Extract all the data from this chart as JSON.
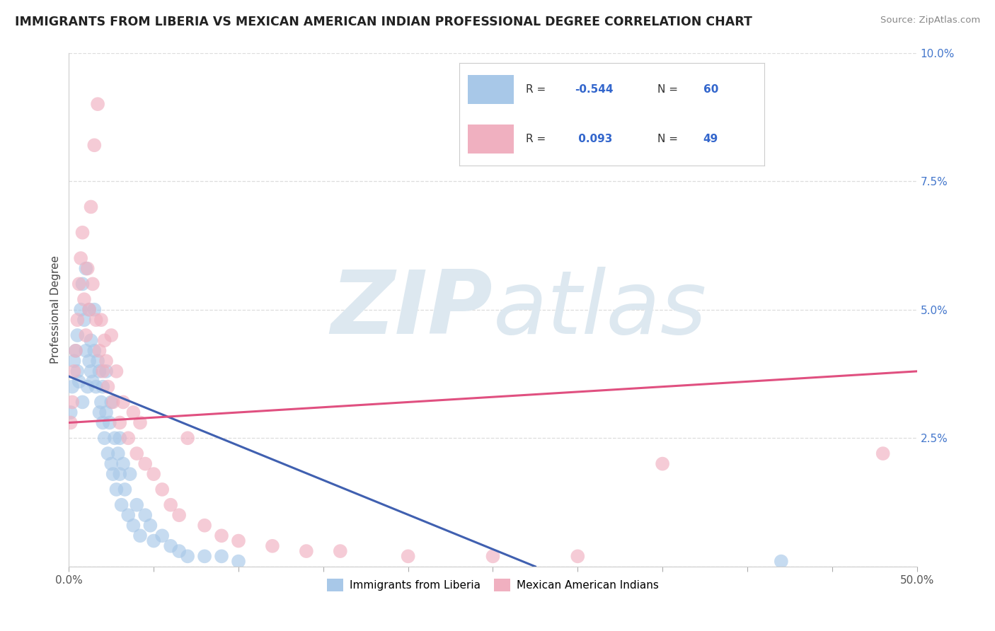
{
  "title": "IMMIGRANTS FROM LIBERIA VS MEXICAN AMERICAN INDIAN PROFESSIONAL DEGREE CORRELATION CHART",
  "source": "Source: ZipAtlas.com",
  "ylabel": "Professional Degree",
  "xlim": [
    0.0,
    0.5
  ],
  "ylim": [
    0.0,
    0.1
  ],
  "xticks": [
    0.0,
    0.05,
    0.1,
    0.15,
    0.2,
    0.25,
    0.3,
    0.35,
    0.4,
    0.45,
    0.5
  ],
  "xticklabels_show": [
    "0.0%",
    "",
    "",
    "",
    "",
    "",
    "",
    "",
    "",
    "",
    "50.0%"
  ],
  "yticks": [
    0.0,
    0.025,
    0.05,
    0.075,
    0.1
  ],
  "yticklabels": [
    "",
    "2.5%",
    "5.0%",
    "7.5%",
    "10.0%"
  ],
  "color_blue": "#a8c8e8",
  "color_pink": "#f0b0c0",
  "line_blue": "#4060b0",
  "line_pink": "#e05080",
  "watermark_color": "#dde8f0",
  "background_color": "#ffffff",
  "grid_color": "#dddddd",
  "blue_scatter_x": [
    0.001,
    0.002,
    0.003,
    0.004,
    0.005,
    0.005,
    0.006,
    0.007,
    0.008,
    0.008,
    0.009,
    0.01,
    0.01,
    0.011,
    0.012,
    0.012,
    0.013,
    0.013,
    0.014,
    0.015,
    0.015,
    0.016,
    0.017,
    0.018,
    0.018,
    0.019,
    0.02,
    0.02,
    0.021,
    0.022,
    0.022,
    0.023,
    0.024,
    0.025,
    0.025,
    0.026,
    0.027,
    0.028,
    0.029,
    0.03,
    0.03,
    0.031,
    0.032,
    0.033,
    0.035,
    0.036,
    0.038,
    0.04,
    0.042,
    0.045,
    0.048,
    0.05,
    0.055,
    0.06,
    0.065,
    0.07,
    0.08,
    0.09,
    0.1,
    0.42
  ],
  "blue_scatter_y": [
    0.03,
    0.035,
    0.04,
    0.042,
    0.038,
    0.045,
    0.036,
    0.05,
    0.055,
    0.032,
    0.048,
    0.042,
    0.058,
    0.035,
    0.04,
    0.05,
    0.038,
    0.044,
    0.036,
    0.042,
    0.05,
    0.035,
    0.04,
    0.03,
    0.038,
    0.032,
    0.028,
    0.035,
    0.025,
    0.03,
    0.038,
    0.022,
    0.028,
    0.02,
    0.032,
    0.018,
    0.025,
    0.015,
    0.022,
    0.018,
    0.025,
    0.012,
    0.02,
    0.015,
    0.01,
    0.018,
    0.008,
    0.012,
    0.006,
    0.01,
    0.008,
    0.005,
    0.006,
    0.004,
    0.003,
    0.002,
    0.002,
    0.002,
    0.001,
    0.001
  ],
  "pink_scatter_x": [
    0.001,
    0.002,
    0.003,
    0.004,
    0.005,
    0.006,
    0.007,
    0.008,
    0.009,
    0.01,
    0.011,
    0.012,
    0.013,
    0.014,
    0.015,
    0.016,
    0.017,
    0.018,
    0.019,
    0.02,
    0.021,
    0.022,
    0.023,
    0.025,
    0.026,
    0.028,
    0.03,
    0.032,
    0.035,
    0.038,
    0.04,
    0.042,
    0.045,
    0.05,
    0.055,
    0.06,
    0.065,
    0.07,
    0.08,
    0.09,
    0.1,
    0.12,
    0.14,
    0.16,
    0.2,
    0.25,
    0.3,
    0.35,
    0.48
  ],
  "pink_scatter_y": [
    0.028,
    0.032,
    0.038,
    0.042,
    0.048,
    0.055,
    0.06,
    0.065,
    0.052,
    0.045,
    0.058,
    0.05,
    0.07,
    0.055,
    0.082,
    0.048,
    0.09,
    0.042,
    0.048,
    0.038,
    0.044,
    0.04,
    0.035,
    0.045,
    0.032,
    0.038,
    0.028,
    0.032,
    0.025,
    0.03,
    0.022,
    0.028,
    0.02,
    0.018,
    0.015,
    0.012,
    0.01,
    0.025,
    0.008,
    0.006,
    0.005,
    0.004,
    0.003,
    0.003,
    0.002,
    0.002,
    0.002,
    0.02,
    0.022
  ],
  "blue_line_x": [
    0.0,
    0.275
  ],
  "blue_line_y": [
    0.037,
    0.0
  ],
  "pink_line_x": [
    0.0,
    0.5
  ],
  "pink_line_y": [
    0.028,
    0.038
  ],
  "legend_blue_r": "-0.544",
  "legend_blue_n": "60",
  "legend_pink_r": "0.093",
  "legend_pink_n": "49",
  "legend_label1": "Immigrants from Liberia",
  "legend_label2": "Mexican American Indians"
}
